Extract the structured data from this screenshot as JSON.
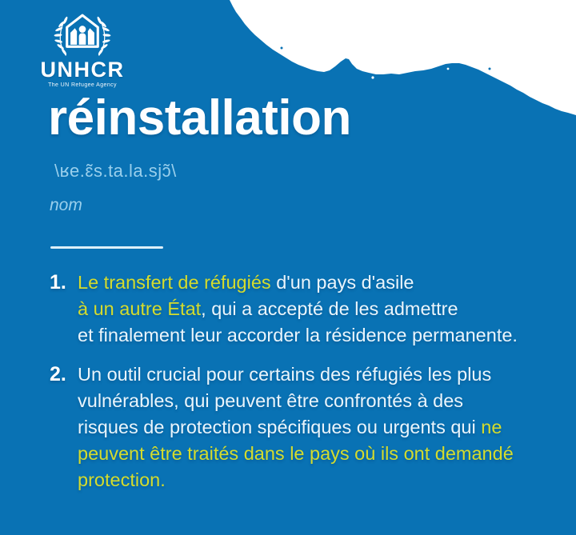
{
  "colors": {
    "background": "#0972b4",
    "paper_white": "#ffffff",
    "body_text": "#eaf5fc",
    "muted_text": "#99cfec",
    "highlight": "#d4dc2d"
  },
  "brand": {
    "name": "UNHCR",
    "tagline": "The UN Refugee Agency",
    "emblem": "unhcr-refugee-shelter-emblem"
  },
  "word": {
    "title": "réinstallation",
    "phonetic": "\\ʁe.ɛ̃s.ta.la.sjɔ̃\\",
    "part_of_speech": "nom"
  },
  "definitions": [
    {
      "number": "1.",
      "lines": [
        [
          {
            "text": "Le transfert de réfugiés",
            "highlight": true
          },
          {
            "text": " d'un pays d'asile",
            "highlight": false
          }
        ],
        [
          {
            "text": "à un autre État",
            "highlight": true
          },
          {
            "text": ", qui a accepté de les admettre",
            "highlight": false
          }
        ],
        [
          {
            "text": "et finalement leur accorder la résidence permanente.",
            "highlight": false
          }
        ]
      ]
    },
    {
      "number": "2.",
      "lines": [
        [
          {
            "text": "Un outil crucial pour certains des réfugiés les plus",
            "highlight": false
          }
        ],
        [
          {
            "text": "vulnérables, qui peuvent être confrontés à des",
            "highlight": false
          }
        ],
        [
          {
            "text": "risques de protection spécifiques ou urgents qui ",
            "highlight": false
          },
          {
            "text": "ne",
            "highlight": true
          }
        ],
        [
          {
            "text": "peuvent être traités dans le pays où ils ont demandé",
            "highlight": true
          }
        ],
        [
          {
            "text": "protection.",
            "highlight": true
          }
        ]
      ]
    }
  ]
}
